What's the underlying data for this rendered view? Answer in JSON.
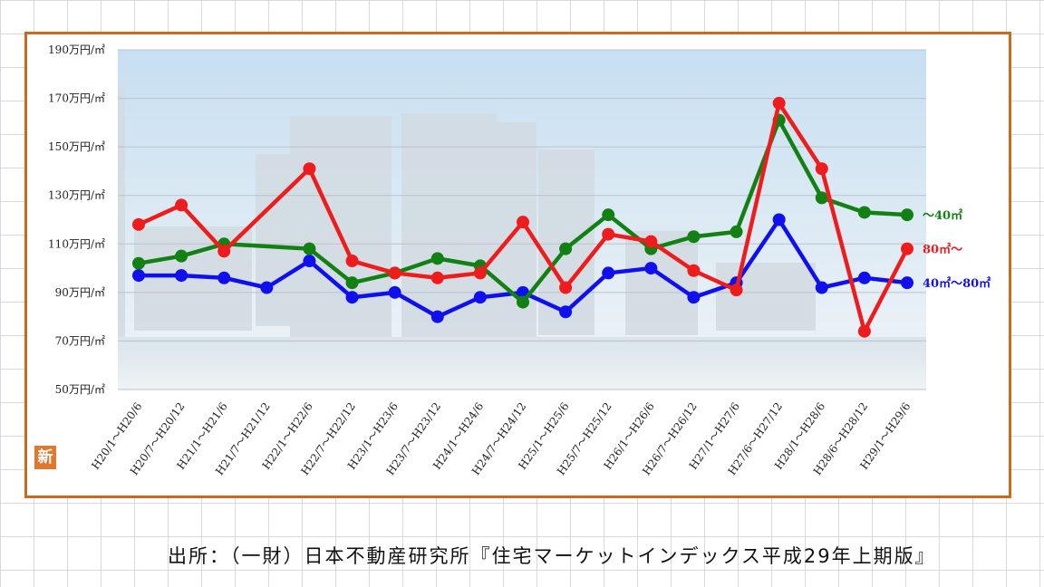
{
  "badge": "新",
  "source": "出所：（一財）日本不動産研究所『住宅マーケットインデックス平成29年上期版』",
  "chart_data": {
    "type": "line",
    "title": "",
    "xlabel": "",
    "ylabel": "",
    "ylim": [
      50,
      190
    ],
    "y_ticks": [
      {
        "value": 50,
        "label": "50万円/㎡"
      },
      {
        "value": 70,
        "label": "70万円/㎡"
      },
      {
        "value": 90,
        "label": "90万円/㎡"
      },
      {
        "value": 110,
        "label": "110万円/㎡"
      },
      {
        "value": 130,
        "label": "130万円/㎡"
      },
      {
        "value": 150,
        "label": "150万円/㎡"
      },
      {
        "value": 170,
        "label": "170万円/㎡"
      },
      {
        "value": 190,
        "label": "190万円/㎡"
      }
    ],
    "grid": true,
    "legend": "right",
    "categories": [
      "H20/1～H20/6",
      "H20/7～H20/12",
      "H21/1～H21/6",
      "H21/7～H21/12",
      "H22/1～H22/6",
      "H22/7～H22/12",
      "H23/1～H23/6",
      "H23/7～H23/12",
      "H24/1～H24/6",
      "H24/7～H24/12",
      "H25/1～H25/6",
      "H25/7～H25/12",
      "H26/1～H26/6",
      "H26/7～H26/12",
      "H27/1～H27/6",
      "H27/6～H27/12",
      "H28/1～H28/6",
      "H28/6～H28/12",
      "H29/1～H29/6"
    ],
    "series": [
      {
        "name": "80㎡～",
        "color": "#ee1c1c",
        "values": [
          118,
          126,
          107,
          null,
          141,
          103,
          98,
          96,
          98,
          119,
          92,
          114,
          111,
          99,
          91,
          168,
          141,
          74,
          108
        ]
      },
      {
        "name": "～40㎡",
        "color": "#138013",
        "values": [
          102,
          105,
          110,
          null,
          108,
          94,
          98,
          104,
          101,
          86,
          108,
          122,
          108,
          113,
          115,
          161,
          129,
          123,
          122
        ]
      },
      {
        "name": "40㎡～80㎡",
        "color": "#1010ee",
        "values": [
          97,
          97,
          96,
          92,
          103,
          88,
          90,
          80,
          88,
          90,
          82,
          98,
          100,
          88,
          94,
          120,
          92,
          96,
          94
        ]
      }
    ]
  }
}
